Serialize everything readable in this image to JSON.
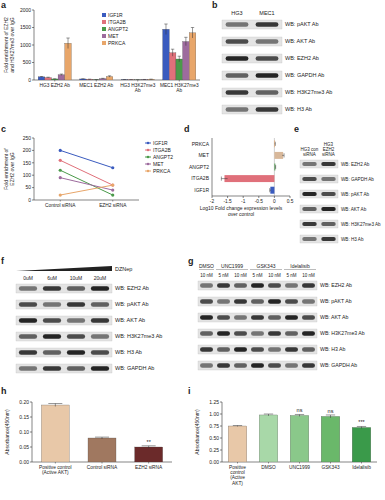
{
  "chart_data": [
    {
      "panel": "a",
      "type": "bar",
      "y_label": "Fold enrichment of EZH2 and H3K27me3 over IgG",
      "categories": [
        "HG3 EZH2 Ab",
        "MEC1 EZH2 Ab",
        "HG3 H3K27me3 Ab",
        "MEC1 H3K27me3 Ab"
      ],
      "series": [
        {
          "name": "IGF1R",
          "color": "#3a5bbf",
          "values": [
            90,
            30,
            10,
            1450
          ],
          "errors": [
            10,
            5,
            3,
            150
          ]
        },
        {
          "name": "ITGA2B",
          "color": "#e0707a",
          "values": [
            70,
            20,
            8,
            780
          ],
          "errors": [
            10,
            5,
            2,
            100
          ]
        },
        {
          "name": "ANGPT2",
          "color": "#4a9a4a",
          "values": [
            30,
            10,
            5,
            600
          ],
          "errors": [
            5,
            3,
            2,
            80
          ]
        },
        {
          "name": "MET",
          "color": "#9d6b9d",
          "values": [
            150,
            40,
            12,
            1100
          ],
          "errors": [
            20,
            8,
            3,
            120
          ]
        },
        {
          "name": "PRKCA",
          "color": "#e8a66a",
          "values": [
            1050,
            100,
            20,
            1350
          ],
          "errors": [
            150,
            20,
            5,
            150
          ]
        }
      ],
      "ylim": [
        0,
        2000
      ],
      "yticks": [
        0,
        500,
        1000,
        1500,
        2000
      ],
      "legend": "top"
    },
    {
      "panel": "c",
      "type": "line",
      "y_label": "Fold enrichment of EZH2 over IgG",
      "categories": [
        "Control siRNA",
        "EZH2 siRNA"
      ],
      "series": [
        {
          "name": "IGF1R",
          "color": "#3a5bbf",
          "marker": "circle",
          "values": [
            200,
            130
          ]
        },
        {
          "name": "ITGA2B",
          "color": "#e0707a",
          "marker": "circle",
          "values": [
            160,
            60
          ]
        },
        {
          "name": "ANGPT2",
          "color": "#4a9a4a",
          "marker": "circle",
          "values": [
            120,
            20
          ]
        },
        {
          "name": "MET",
          "color": "#9d6b9d",
          "marker": "circle",
          "values": [
            90,
            40
          ]
        },
        {
          "name": "PRKCA",
          "color": "#e8a66a",
          "marker": "circle",
          "values": [
            20,
            60
          ]
        }
      ],
      "ylim": [
        0,
        250
      ],
      "yticks": [
        0,
        50,
        100,
        150,
        200,
        250
      ],
      "legend": "right"
    },
    {
      "panel": "d",
      "type": "bar",
      "orientation": "horizontal",
      "x_label": "Log10 Fold change expression levels over control",
      "categories": [
        "PRKCA",
        "MET",
        "ANGPT2",
        "ITGA2B",
        "IGF1R"
      ],
      "values": [
        0.02,
        0.28,
        0.03,
        -1.6,
        -0.13
      ],
      "errors": [
        0.01,
        0.03,
        0.01,
        0.1,
        0.02
      ],
      "colors": [
        "#e8a66a",
        "#d8b89a",
        "#4a9a4a",
        "#e0707a",
        "#3a5bbf"
      ],
      "xlim": [
        -2,
        0.5
      ],
      "xticks": [
        -2,
        -1.5,
        -1,
        -0.5,
        0,
        0.5
      ]
    },
    {
      "panel": "h",
      "type": "bar",
      "y_label": "Absorbance(450nm)",
      "categories": [
        "Positive control (Active AKT)",
        "Control siRNA",
        "EZH2 siRNA"
      ],
      "values": [
        0.19,
        0.08,
        0.05
      ],
      "errors": [
        0.005,
        0.003,
        0.004
      ],
      "colors": [
        "#e8c8a8",
        "#a07860",
        "#6b2a2a"
      ],
      "annotations": [
        null,
        null,
        "**"
      ],
      "ylim": [
        0,
        0.2
      ],
      "yticks": [
        {
          "value": 0,
          "label": "0.00"
        },
        0.05,
        {
          "value": 0.1,
          "label": "0.10"
        },
        0.15,
        {
          "value": 0.2,
          "label": "0.20"
        }
      ]
    },
    {
      "panel": "i",
      "type": "bar",
      "y_label": "Absorbance(450nm)",
      "categories": [
        "Positive control (Active AKT)",
        "DMSO",
        "UNC1999",
        "GSK343",
        "Idelalisib"
      ],
      "values": [
        0.75,
        0.98,
        0.97,
        0.95,
        0.72
      ],
      "errors": [
        0.01,
        0.02,
        0.02,
        0.03,
        0.02
      ],
      "colors": [
        "#e8c8a8",
        "#a8d8a8",
        "#8ac88a",
        "#6ab86a",
        "#3a9a4a"
      ],
      "annotations": [
        null,
        null,
        "ns",
        "ns",
        "***"
      ],
      "ylim": [
        0,
        1.25
      ],
      "yticks": [
        {
          "value": 0,
          "label": "0.00"
        },
        0.25,
        {
          "value": 0.5,
          "label": "0.50"
        },
        0.75,
        {
          "value": 1,
          "label": "1.00"
        },
        1.25
      ]
    }
  ],
  "blots": [
    {
      "panel": "b",
      "columns": [
        "HG3",
        "MEC1"
      ],
      "rows": [
        "WB: pAKT Ab",
        "WB: AKT Ab",
        "WB: EZH2 Ab",
        "WB: GAPDH Ab",
        "WB: H3K27me3 Ab",
        "WB: H3 Ab"
      ]
    },
    {
      "panel": "e",
      "columns": [
        "HG3 con siRNA",
        "HG3 EZH2 siRNA"
      ],
      "rows": [
        "WB: EZH2 Ab",
        "WB: GAPDH Ab",
        "WB: pAKT Ab",
        "WB: AKT Ab",
        "WB: H3K27me3 Ab",
        "WB: H3 Ab"
      ]
    },
    {
      "panel": "f",
      "header": "DZNep",
      "columns": [
        "0uM",
        "6uM",
        "10uM",
        "20uM"
      ],
      "rows": [
        "WB: EZH2 Ab",
        "WB: pAKT Ab",
        "WB: AKT Ab",
        "WB: H3K27me3 Ab",
        "WB: H3 Ab",
        "WB: GAPDH Ab"
      ]
    },
    {
      "panel": "g",
      "groups": [
        {
          "label": "DMSO",
          "lanes": [
            "10 nM"
          ]
        },
        {
          "label": "UNC1999",
          "lanes": [
            "5 nM",
            "10 nM"
          ]
        },
        {
          "label": "GSK343",
          "lanes": [
            "5 nM",
            "10 nM"
          ]
        },
        {
          "label": "Idelalisib",
          "lanes": [
            "5 nM",
            "10 nM"
          ]
        }
      ],
      "rows": [
        "WB: EZH2 Ab",
        "WB: pAKT Ab",
        "WB: AKT Ab",
        "WB: H3K27me3 Ab",
        "WB: H3 Ab",
        "WB: GAPDH Ab"
      ]
    }
  ]
}
